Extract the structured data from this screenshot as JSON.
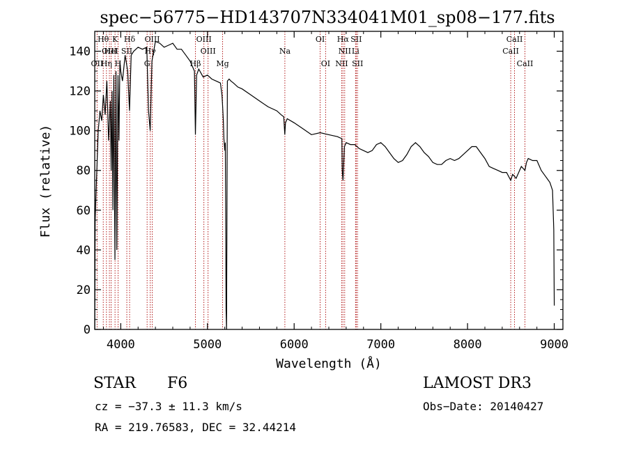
{
  "chart_data": {
    "type": "line",
    "title": "spec−56775−HD143707N334041M01_sp08−177.fits",
    "xlabel": "Wavelength (Å)",
    "ylabel": "Flux (relative)",
    "xlim": [
      3700,
      9100
    ],
    "ylim": [
      0,
      150
    ],
    "xticks": [
      4000,
      5000,
      6000,
      7000,
      8000,
      9000
    ],
    "yticks": [
      0,
      20,
      40,
      60,
      80,
      100,
      120,
      140
    ],
    "series": [
      {
        "name": "spectrum",
        "x": [
          3700,
          3705,
          3720,
          3740,
          3760,
          3780,
          3800,
          3820,
          3840,
          3860,
          3880,
          3890,
          3900,
          3910,
          3920,
          3933,
          3945,
          3955,
          3968,
          3980,
          3990,
          4000,
          4020,
          4050,
          4080,
          4101,
          4120,
          4150,
          4200,
          4250,
          4300,
          4320,
          4340,
          4360,
          4400,
          4450,
          4500,
          4550,
          4600,
          4650,
          4700,
          4750,
          4800,
          4830,
          4850,
          4861,
          4875,
          4900,
          4950,
          5000,
          5050,
          5100,
          5150,
          5167,
          5175,
          5183,
          5190,
          5200,
          5206,
          5210,
          5215,
          5220,
          5230,
          5250,
          5270,
          5300,
          5350,
          5400,
          5500,
          5600,
          5700,
          5800,
          5850,
          5880,
          5892,
          5900,
          5920,
          6000,
          6100,
          6200,
          6300,
          6400,
          6500,
          6550,
          6555,
          6563,
          6570,
          6580,
          6600,
          6650,
          6700,
          6750,
          6800,
          6850,
          6900,
          6950,
          7000,
          7050,
          7100,
          7150,
          7200,
          7250,
          7300,
          7350,
          7400,
          7450,
          7500,
          7550,
          7600,
          7650,
          7700,
          7750,
          7800,
          7850,
          7900,
          7950,
          8000,
          8050,
          8100,
          8150,
          8200,
          8250,
          8300,
          8350,
          8400,
          8450,
          8498,
          8520,
          8542,
          8560,
          8600,
          8620,
          8662,
          8680,
          8700,
          8750,
          8800,
          8850,
          8900,
          8950,
          8980,
          8995,
          9000
        ],
        "y": [
          0,
          55,
          75,
          100,
          110,
          105,
          118,
          108,
          125,
          95,
          115,
          80,
          120,
          60,
          128,
          35,
          130,
          40,
          128,
          95,
          135,
          130,
          125,
          138,
          130,
          110,
          138,
          140,
          142,
          141,
          142,
          110,
          100,
          135,
          145,
          144,
          142,
          143,
          144,
          141,
          141,
          138,
          135,
          132,
          130,
          98,
          128,
          131,
          127,
          128,
          126,
          125,
          124,
          118,
          112,
          105,
          96,
          90,
          94,
          65,
          10,
          0,
          125,
          126,
          125,
          124,
          122,
          121,
          118,
          115,
          112,
          110,
          108,
          107,
          98,
          104,
          106,
          104,
          101,
          98,
          99,
          98,
          97,
          96,
          80,
          75,
          82,
          92,
          94,
          93,
          93,
          91,
          90,
          89,
          90,
          93,
          94,
          92,
          89,
          86,
          84,
          85,
          88,
          92,
          94,
          92,
          89,
          87,
          84,
          83,
          83,
          85,
          86,
          85,
          86,
          88,
          90,
          92,
          92,
          89,
          86,
          82,
          81,
          80,
          79,
          79,
          75,
          78,
          77,
          76,
          80,
          82,
          80,
          84,
          86,
          85,
          85,
          80,
          77,
          74,
          70,
          50,
          12
        ]
      }
    ],
    "line_markers": [
      {
        "label": "Hθ",
        "wavelength": 3798,
        "row": 1
      },
      {
        "label": "OII",
        "wavelength": 3727,
        "row": 3
      },
      {
        "label": "Hη",
        "wavelength": 3835,
        "row": 3
      },
      {
        "label": "OIII",
        "wavelength": 3869,
        "row": 2
      },
      {
        "label": "HeI",
        "wavelength": 3889,
        "row": 2
      },
      {
        "label": "K",
        "wavelength": 3934,
        "row": 1
      },
      {
        "label": "SII",
        "wavelength": 4070,
        "row": 2
      },
      {
        "label": "Hδ",
        "wavelength": 4102,
        "row": 1
      },
      {
        "label": "H",
        "wavelength": 3969,
        "row": 3
      },
      {
        "label": "OIII",
        "wavelength": 4363,
        "row": 1
      },
      {
        "label": "Hγ",
        "wavelength": 4340,
        "row": 2
      },
      {
        "label": "G",
        "wavelength": 4304,
        "row": 3
      },
      {
        "label": "OIII",
        "wavelength": 4959,
        "row": 1
      },
      {
        "label": "OIII",
        "wavelength": 5007,
        "row": 2
      },
      {
        "label": "Hβ",
        "wavelength": 4861,
        "row": 3
      },
      {
        "label": "Mg",
        "wavelength": 5175,
        "row": 3
      },
      {
        "label": "Na",
        "wavelength": 5893,
        "row": 2
      },
      {
        "label": "OI",
        "wavelength": 6300,
        "row": 1
      },
      {
        "label": "OI",
        "wavelength": 6363,
        "row": 3
      },
      {
        "label": "Hα",
        "wavelength": 6563,
        "row": 1
      },
      {
        "label": "NII",
        "wavelength": 6583,
        "row": 2
      },
      {
        "label": "NII",
        "wavelength": 6548,
        "row": 3
      },
      {
        "label": "SII",
        "wavelength": 6716,
        "row": 1
      },
      {
        "label": "Li",
        "wavelength": 6708,
        "row": 2
      },
      {
        "label": "SII",
        "wavelength": 6731,
        "row": 3
      },
      {
        "label": "CaII",
        "wavelength": 8542,
        "row": 1
      },
      {
        "label": "CaII",
        "wavelength": 8498,
        "row": 2
      },
      {
        "label": "CaII",
        "wavelength": 8662,
        "row": 3
      }
    ],
    "marker_color": "#aa0000",
    "line_color": "#000000"
  },
  "info": {
    "object_class": "STAR",
    "subclass": "F6",
    "survey": "LAMOST DR3",
    "redshift_text": "cz = −37.3 ± 11.3 km/s",
    "obs_date_text": "Obs−Date: 20140427",
    "coords_text": "RA = 219.76583, DEC =  32.44214"
  }
}
